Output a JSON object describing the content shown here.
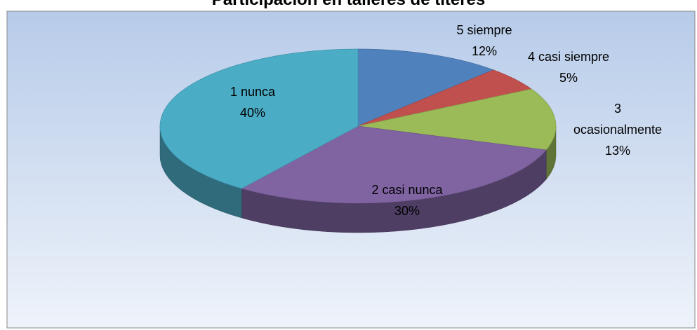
{
  "chart_data": {
    "type": "pie",
    "title": "Participación en talleres de títeres",
    "categories": [
      "5 siempre",
      "4 casi siempre",
      "3 ocasionalmente",
      "2 casi nunca",
      "1 nunca"
    ],
    "values": [
      12,
      5,
      13,
      30,
      40
    ],
    "value_labels": [
      "12%",
      "5%",
      "13%",
      "30%",
      "40%"
    ],
    "colors": [
      "#4f81bd",
      "#c0504d",
      "#9bbb59",
      "#8064a2",
      "#4bacc6"
    ]
  }
}
